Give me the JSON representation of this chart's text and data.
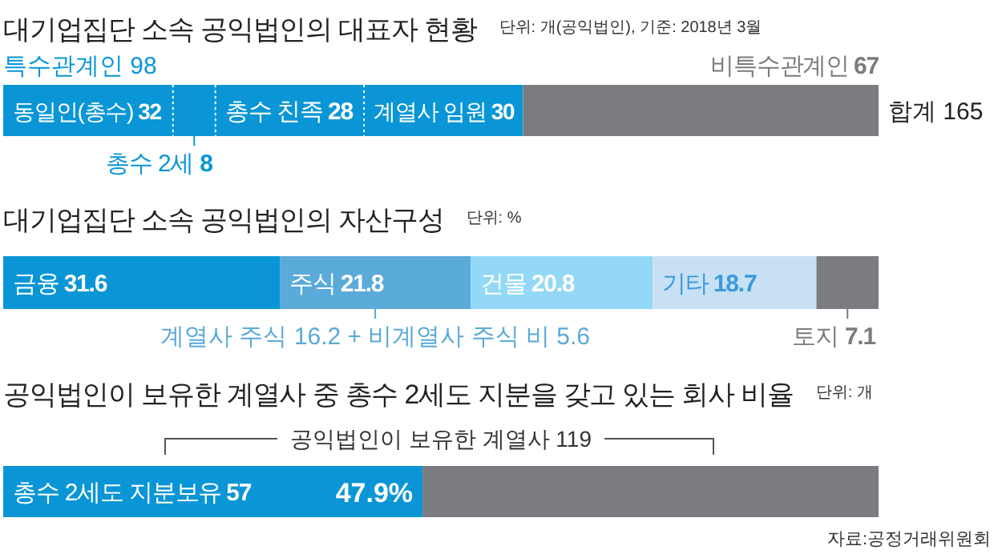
{
  "chart_data": [
    {
      "type": "bar",
      "orientation": "horizontal",
      "stacked": true,
      "title": "대기업집단 소속 공익법인의 대표자 현황",
      "subtitle": "단위: 개(공익법인), 기준: 2018년 3월",
      "categories": [
        null
      ],
      "series": [
        {
          "name": "동일인(총수)",
          "color": "#0a96d6",
          "values": [
            32
          ],
          "value_labels": [
            "32"
          ]
        },
        {
          "name": "총수 2세",
          "color": "#0a96d6",
          "values": [
            8
          ],
          "value_labels": [
            "8"
          ]
        },
        {
          "name": "총수 친족",
          "color": "#0a96d6",
          "values": [
            28
          ],
          "value_labels": [
            "28"
          ]
        },
        {
          "name": "계열사 임원",
          "color": "#0a96d6",
          "values": [
            30
          ],
          "value_labels": [
            "30"
          ]
        },
        {
          "name": "비특수관계인",
          "color": "#7b7c80",
          "values": [
            67
          ],
          "value_labels": [
            "67"
          ]
        }
      ],
      "annotations": [
        "특수관계인 98",
        "합계 165"
      ]
    },
    {
      "type": "bar",
      "orientation": "horizontal",
      "stacked": true,
      "title": "대기업집단 소속 공익법인의 자산구성",
      "subtitle": "단위: %",
      "categories": [
        null
      ],
      "series": [
        {
          "name": "금융",
          "color": "#0a96d6",
          "values": [
            31.6
          ],
          "value_labels": [
            "31.6"
          ]
        },
        {
          "name": "주식",
          "color": "#5aaada",
          "values": [
            21.8
          ],
          "value_labels": [
            "21.8"
          ]
        },
        {
          "name": "건물",
          "color": "#93d8f6",
          "values": [
            20.8
          ],
          "value_labels": [
            "20.8"
          ]
        },
        {
          "name": "기타",
          "color": "#c8e0f4",
          "values": [
            18.7
          ],
          "value_labels": [
            "18.7"
          ]
        },
        {
          "name": "토지",
          "color": "#7b7c80",
          "values": [
            7.1
          ],
          "value_labels": [
            "7.1"
          ]
        }
      ],
      "annotations": [
        "계열사 주식 16.2 + 비계열사 주식 비 5.6"
      ]
    },
    {
      "type": "bar",
      "orientation": "horizontal",
      "stacked": true,
      "title": "공익법인이 보유한 계열사 중 총수 2세도 지분을 갖고 있는 회사 비율",
      "subtitle": "단위: 개",
      "categories": [
        null
      ],
      "series": [
        {
          "name": "총수 2세도 지분보유",
          "color": "#0a96d6",
          "values": [
            57
          ],
          "value_labels": [
            "57"
          ]
        },
        {
          "color": "#7b7c80",
          "values": [
            62
          ],
          "value_labels": [
            null
          ]
        }
      ],
      "annotations": [
        "공익법인이 보유한 계열사 119",
        "47.9%",
        "자료:공정거래위원회"
      ]
    }
  ]
}
